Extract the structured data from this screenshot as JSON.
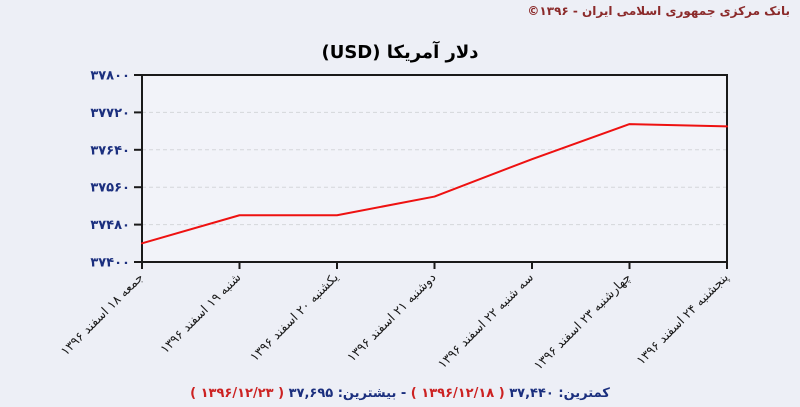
{
  "header": {
    "copyright": "بانک مرکزی جمهوری اسلامی ایران - ۱۳۹۶©"
  },
  "chart_data": {
    "type": "line",
    "title": "دلار آمریکا (USD)",
    "xlabel": "",
    "ylabel": "",
    "categories": [
      "جمعه ۱۸ اسفند ۱۳۹۶",
      "شنبه ۱۹ اسفند ۱۳۹۶",
      "یکشنبه ۲۰ اسفند ۱۳۹۶",
      "دوشنبه ۲۱ اسفند ۱۳۹۶",
      "سه شنبه ۲۲ اسفند ۱۳۹۶",
      "چهارشنبه ۲۳ اسفند ۱۳۹۶",
      "پنجشنبه ۲۴ اسفند ۱۳۹۶"
    ],
    "values": [
      37440,
      37500,
      37500,
      37540,
      37620,
      37695,
      37690
    ],
    "ylim": [
      37400,
      37800
    ],
    "yticks": [
      37400,
      37480,
      37560,
      37640,
      37720,
      37800
    ],
    "ytick_labels": [
      "۳۷۴۰۰",
      "۳۷۴۸۰",
      "۳۷۵۶۰",
      "۳۷۶۴۰",
      "۳۷۷۲۰",
      "۳۷۸۰۰"
    ],
    "grid": "horizontal-dashed",
    "legend": "none",
    "line_color": "#ee1111"
  },
  "summary": {
    "min_label": "کمترین:",
    "min_value": "۳۷,۴۴۰",
    "min_date": "( ۱۳۹۶/۱۲/۱۸ )",
    "separator": "-",
    "max_label": "بیشترین:",
    "max_value": "۳۷,۶۹۵",
    "max_date": "( ۱۳۹۶/۱۲/۲۳ )"
  },
  "colors": {
    "page_bg": "#edeff6",
    "plot_bg": "#f2f3f9",
    "border": "#1a1a1a",
    "grid": "#d4d6da",
    "line_red": "#ee1111",
    "axis_navy": "#1b2f7e",
    "copyright_maroon": "#8b2a2a",
    "summary_date_red": "#cc2222"
  }
}
